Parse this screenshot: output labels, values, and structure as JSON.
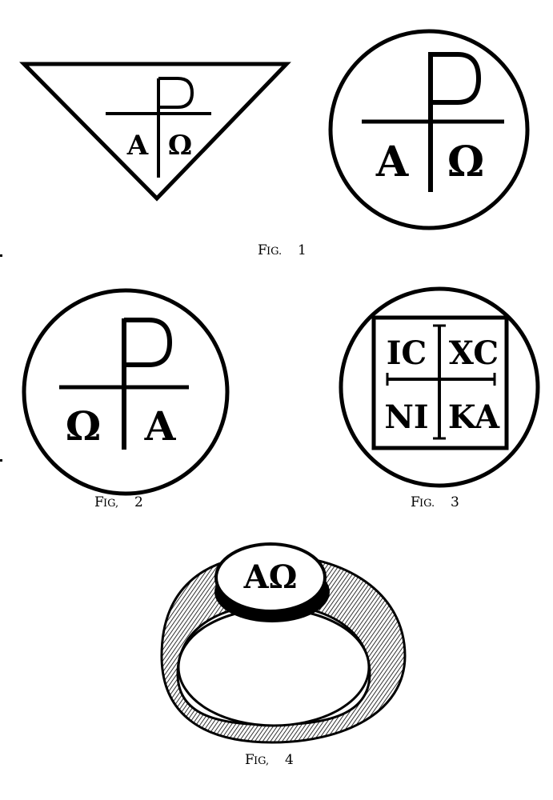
{
  "fig1": {
    "caption_main": "F",
    "caption_small": "IG.",
    "caption_num": "1",
    "triangle": {
      "rho": "P",
      "left": "A",
      "right": "Ω"
    },
    "circle": {
      "rho": "P",
      "left": "A",
      "right": "Ω"
    }
  },
  "fig2": {
    "caption_main": "F",
    "caption_small": "IG,",
    "caption_num": "2",
    "rho": "P",
    "left": "Ω",
    "right": "A"
  },
  "fig3": {
    "caption_main": "F",
    "caption_small": "IG.",
    "caption_num": "3",
    "top_left": "IC",
    "top_right": "XC",
    "bottom_left": "NI",
    "bottom_right": "KA"
  },
  "fig4": {
    "caption_main": "F",
    "caption_small": "IG,",
    "caption_num": "4",
    "bezel_text": "AΩ"
  },
  "colors": {
    "ink": "#000000",
    "paper": "#ffffff"
  }
}
